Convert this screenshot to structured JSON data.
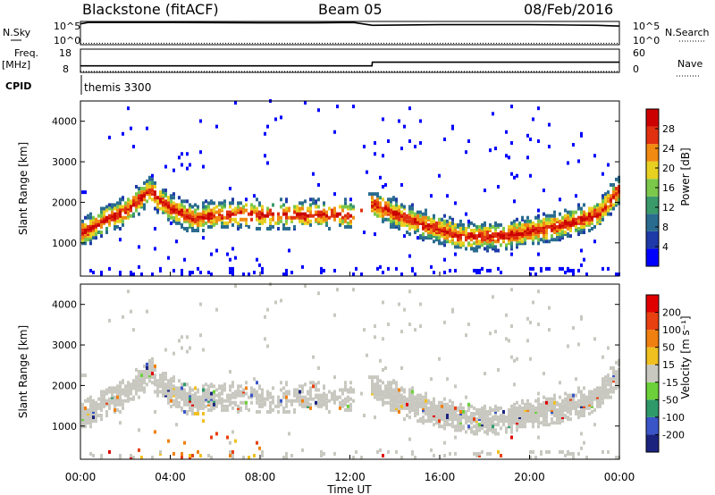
{
  "header": {
    "radar": "Blackstone (fitACF)",
    "beam": "Beam 05",
    "date": "08/Feb/2016"
  },
  "top_panels": {
    "nsky_label": "N.Sky",
    "nsearch_label": "N.Search",
    "noise_ticks": [
      "10^5",
      "10^0"
    ],
    "freq_label": "Freq.",
    "freq_unit": "[MHz]",
    "freq_ticks": [
      "18",
      "8"
    ],
    "nave_label": "Nave",
    "nave_ticks": [
      "60",
      "0"
    ],
    "cpid_label": "CPID",
    "cpid_value": "themis 3300"
  },
  "chart_data": [
    {
      "type": "line",
      "title": "",
      "ylabel": "N.Sky / N.Search",
      "scale": "log",
      "ylim": [
        1,
        100000
      ],
      "series": [
        {
          "name": "N.Sky",
          "style": "solid",
          "x": [
            "00:00",
            "00:20",
            "04:00",
            "08:00",
            "10:30",
            "12:10",
            "13:00",
            "16:00",
            "20:00",
            "23:00",
            "24:00"
          ],
          "values": [
            30000,
            60000,
            60000,
            50000,
            50000,
            60000,
            15000,
            20000,
            20000,
            15000,
            10000
          ]
        },
        {
          "name": "N.Search",
          "style": "dotted",
          "x": [
            "00:00",
            "06:00",
            "12:00",
            "18:00",
            "24:00"
          ],
          "values": [
            2,
            2,
            2,
            2,
            2
          ]
        }
      ]
    },
    {
      "type": "line",
      "ylabel": "Freq. [MHz]",
      "ylim": [
        8,
        18
      ],
      "series": [
        {
          "name": "Freq.",
          "style": "solid",
          "x": [
            "00:00",
            "12:59",
            "13:00",
            "24:00"
          ],
          "values": [
            10.8,
            10.8,
            12.4,
            12.4
          ]
        },
        {
          "name": "Nave",
          "style": "dotted",
          "x": [
            "00:00",
            "24:00"
          ],
          "values": [
            0,
            0
          ]
        }
      ],
      "right_axis": {
        "label": "Nave",
        "ylim": [
          0,
          60
        ]
      }
    },
    {
      "type": "heatmap",
      "panel": "power",
      "xlabel": "Time UT",
      "ylabel": "Slant Range [km]",
      "xticks": [
        "00:00",
        "04:00",
        "08:00",
        "12:00",
        "16:00",
        "20:00",
        "00:00"
      ],
      "yticks": [
        1000,
        2000,
        3000,
        4000
      ],
      "ylim": [
        180,
        4500
      ],
      "colorbar": {
        "label": "Power [dB]",
        "ticks": [
          4,
          8,
          12,
          16,
          20,
          24,
          28
        ],
        "colors": [
          "#0000ff",
          "#1e3aa8",
          "#2a6c8f",
          "#3a9a6a",
          "#7cc84a",
          "#e8d020",
          "#f08a10",
          "#e03010",
          "#cc0000"
        ]
      },
      "features": [
        {
          "x": [
            "00:00",
            "01:00",
            "02:00",
            "03:00",
            "04:00",
            "05:00",
            "06:00"
          ],
          "range_km": [
            1200,
            1500,
            1750,
            2250,
            1800,
            1550,
            1650
          ]
        },
        {
          "x": [
            "13:00",
            "15:00",
            "17:00",
            "19:00",
            "21:00",
            "23:00",
            "24:00"
          ],
          "range_km": [
            1900,
            1450,
            1100,
            1150,
            1350,
            1650,
            2300
          ]
        }
      ]
    },
    {
      "type": "heatmap",
      "panel": "velocity",
      "xlabel": "Time UT",
      "ylabel": "Slant Range [km]",
      "xticks": [
        "00:00",
        "04:00",
        "08:00",
        "12:00",
        "16:00",
        "20:00",
        "00:00"
      ],
      "yticks": [
        1000,
        2000,
        3000,
        4000
      ],
      "ylim": [
        180,
        4500
      ],
      "colorbar": {
        "label": "Velocity [m s⁻¹]",
        "ticks": [
          200,
          100,
          50,
          15,
          -15,
          -50,
          -100,
          -200
        ],
        "colors": [
          "#1a237e",
          "#3a55c8",
          "#2e9a6a",
          "#6cd03a",
          "#c8c8c0",
          "#f0c020",
          "#f08010",
          "#e84010",
          "#e00000"
        ]
      }
    }
  ],
  "x_axis": {
    "label": "Time UT",
    "ticks": [
      "00:00",
      "04:00",
      "08:00",
      "12:00",
      "16:00",
      "20:00",
      "00:00"
    ]
  }
}
